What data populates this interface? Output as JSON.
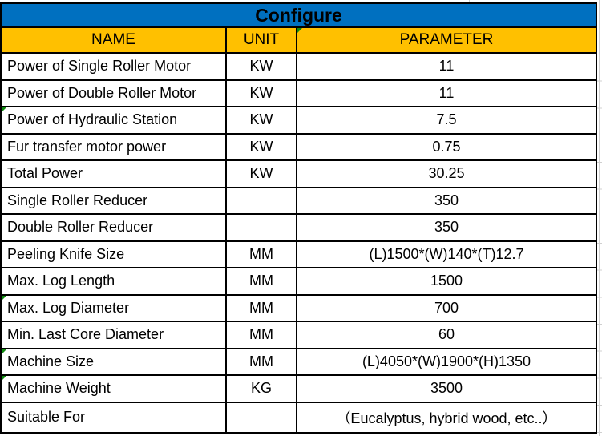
{
  "table": {
    "title": "Configure",
    "columns": [
      "NAME",
      "UNIT",
      "PARAMETER"
    ],
    "rows": [
      {
        "name": "Power of Single Roller Motor",
        "unit": "KW",
        "parameter": "11"
      },
      {
        "name": "Power of Double Roller Motor",
        "unit": "KW",
        "parameter": "11"
      },
      {
        "name": "Power of Hydraulic Station",
        "unit": "KW",
        "parameter": "7.5"
      },
      {
        "name": "Fur transfer motor power",
        "unit": "KW",
        "parameter": "0.75"
      },
      {
        "name": "Total Power",
        "unit": "KW",
        "parameter": "30.25"
      },
      {
        "name": "Single Roller Reducer",
        "unit": "",
        "parameter": "350"
      },
      {
        "name": "Double Roller Reducer",
        "unit": "",
        "parameter": "350"
      },
      {
        "name": "Peeling Knife Size",
        "unit": "MM",
        "parameter": "(L)1500*(W)140*(T)12.7"
      },
      {
        "name": "Max. Log Length",
        "unit": "MM",
        "parameter": "1500"
      },
      {
        "name": "Max. Log Diameter",
        "unit": "MM",
        "parameter": "700"
      },
      {
        "name": "Min. Last Core Diameter",
        "unit": "MM",
        "parameter": "60"
      },
      {
        "name": "Machine Size",
        "unit": "MM",
        "parameter": "(L)4050*(W)1900*(H)1350"
      },
      {
        "name": "Machine Weight",
        "unit": "KG",
        "parameter": "3500"
      },
      {
        "name": "Suitable For",
        "unit": "",
        "parameter": "（Eucalyptus, hybrid wood, etc..）"
      }
    ],
    "error_flag_cells": [
      "header-parameter",
      "row-2-name",
      "row-9-name",
      "row-11-name",
      "row-12-name"
    ],
    "colors": {
      "title_bg": "#0070C0",
      "header_bg": "#FFC000",
      "border": "#000000",
      "error_flag": "#0E8A0E",
      "gridline": "#D0D0D0"
    }
  }
}
